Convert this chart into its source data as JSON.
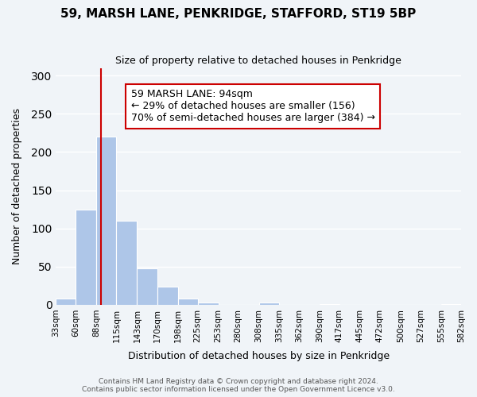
{
  "title": "59, MARSH LANE, PENKRIDGE, STAFFORD, ST19 5BP",
  "subtitle": "Size of property relative to detached houses in Penkridge",
  "xlabel": "Distribution of detached houses by size in Penkridge",
  "ylabel": "Number of detached properties",
  "bar_edges": [
    33,
    60,
    88,
    115,
    143,
    170,
    198,
    225,
    253,
    280,
    308,
    335,
    362,
    390,
    417,
    445,
    472,
    500,
    527,
    555,
    582
  ],
  "bar_heights": [
    8,
    125,
    220,
    110,
    48,
    24,
    8,
    3,
    0,
    0,
    3,
    0,
    0,
    1,
    0,
    0,
    0,
    0,
    0,
    1
  ],
  "bar_color": "#aec6e8",
  "bar_edge_color": "#ffffff",
  "property_line_x": 94,
  "property_line_color": "#cc0000",
  "ylim": [
    0,
    310
  ],
  "annotation_box_text": "59 MARSH LANE: 94sqm\n← 29% of detached houses are smaller (156)\n70% of semi-detached houses are larger (384) →",
  "annotation_fontsize": 9,
  "footer_text": "Contains HM Land Registry data © Crown copyright and database right 2024.\nContains public sector information licensed under the Open Government Licence v3.0.",
  "background_color": "#f0f4f8",
  "grid_color": "#ffffff",
  "tick_labels": [
    "33sqm",
    "60sqm",
    "88sqm",
    "115sqm",
    "143sqm",
    "170sqm",
    "198sqm",
    "225sqm",
    "253sqm",
    "280sqm",
    "308sqm",
    "335sqm",
    "362sqm",
    "390sqm",
    "417sqm",
    "445sqm",
    "472sqm",
    "500sqm",
    "527sqm",
    "555sqm",
    "582sqm"
  ]
}
